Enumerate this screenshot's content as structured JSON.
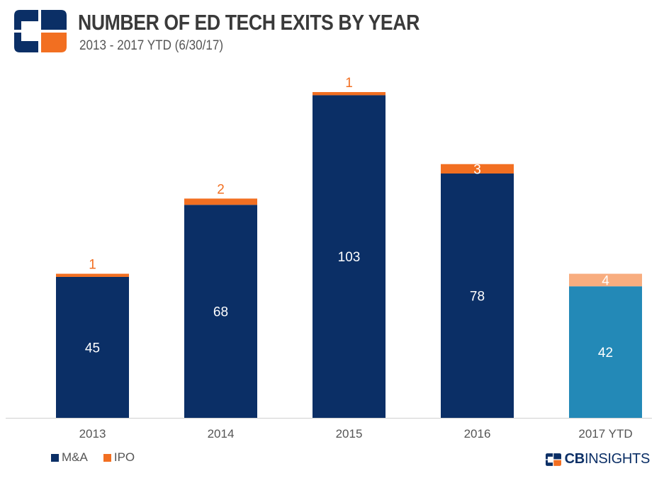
{
  "header": {
    "title": "NUMBER OF ED TECH EXITS BY YEAR",
    "subtitle": "2013 - 2017 YTD (6/30/17)"
  },
  "colors": {
    "ma": "#0b2f66",
    "ipo": "#f26f21",
    "ma_ytd": "#2389b7",
    "ipo_ytd": "#f8ad7f",
    "label_ipo": "#f26f21",
    "axis_text": "#555555"
  },
  "chart_data": {
    "type": "bar",
    "stacked": true,
    "title": "NUMBER OF ED TECH EXITS BY YEAR",
    "subtitle": "2013 - 2017 YTD (6/30/17)",
    "categories": [
      "2013",
      "2014",
      "2015",
      "2016",
      "2017 YTD"
    ],
    "series": [
      {
        "name": "M&A",
        "values": [
          45,
          68,
          103,
          78,
          42
        ]
      },
      {
        "name": "IPO",
        "values": [
          1,
          2,
          1,
          3,
          4
        ]
      }
    ],
    "xlabel": "",
    "ylabel": "",
    "ylim": [
      0,
      104
    ],
    "grid": false,
    "legend": "bottom-left"
  },
  "legend": {
    "items": [
      "M&A",
      "IPO"
    ]
  },
  "brand": {
    "bold": "CB",
    "rest": "INSIGHTS"
  }
}
